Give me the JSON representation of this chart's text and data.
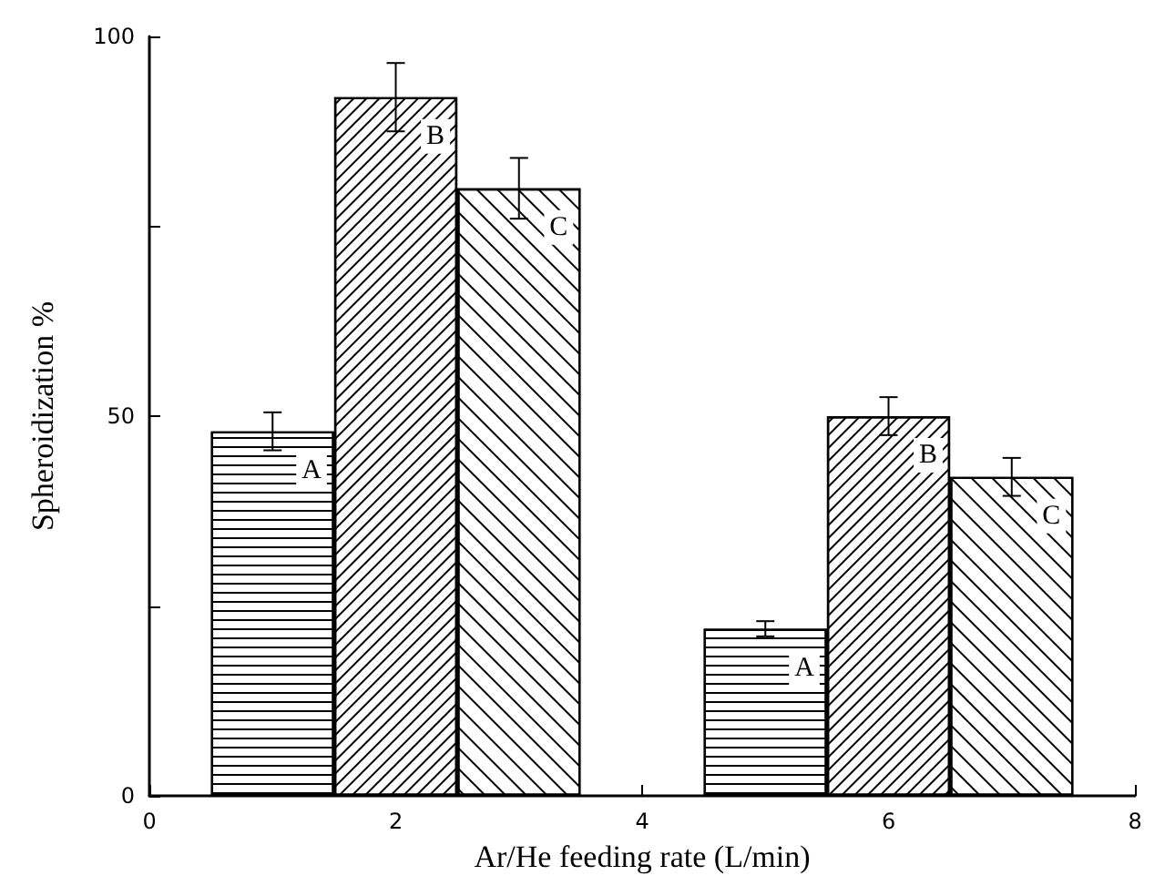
{
  "chart_data": {
    "type": "bar",
    "xlabel": "Ar/He feeding rate (L/min)",
    "ylabel": "Spheroidization %",
    "xlim": [
      0,
      8
    ],
    "xticks": [
      0,
      {
        "value": 1,
        "label": null
      },
      2,
      {
        "value": 3,
        "label": null
      },
      4,
      {
        "value": 5,
        "label": null
      },
      6,
      {
        "value": 7,
        "label": null
      },
      8
    ],
    "ylim": [
      0,
      100
    ],
    "yticks": [
      0,
      {
        "value": 25,
        "label": null
      },
      50,
      {
        "value": 75,
        "label": null
      },
      100
    ],
    "grid": false,
    "legend": false,
    "series": [
      {
        "name": "A",
        "color": "#ffffff",
        "x": [
          1,
          5
        ],
        "values": [
          48,
          22
        ],
        "errors": [
          2.5,
          1
        ]
      },
      {
        "name": "B",
        "color": "#ffffff",
        "x": [
          2,
          6
        ],
        "values": [
          92,
          50
        ],
        "errors": [
          4.5,
          2.5
        ]
      },
      {
        "name": "C",
        "color": "#ffffff",
        "x": [
          3,
          7
        ],
        "values": [
          80,
          42
        ],
        "errors": [
          4,
          2.5
        ]
      }
    ]
  }
}
